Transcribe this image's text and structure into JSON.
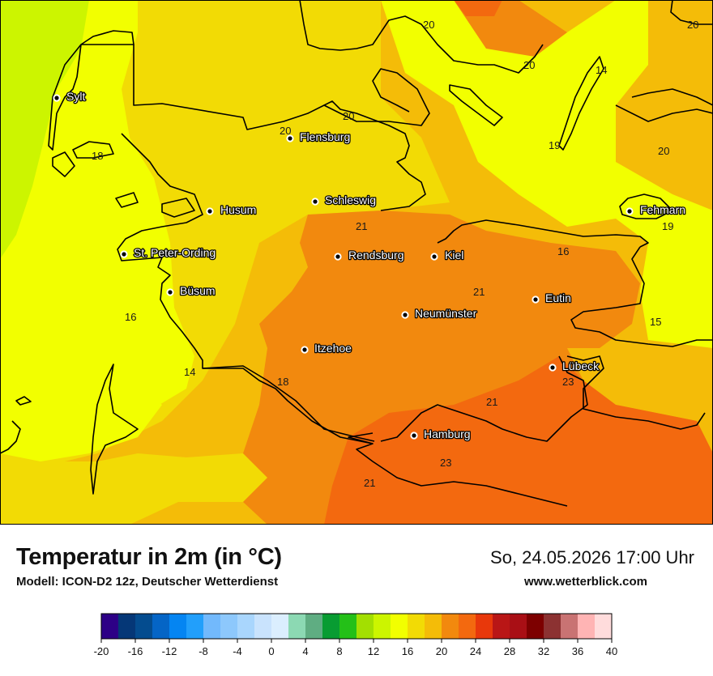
{
  "map": {
    "cities": [
      {
        "name": "Sylt"
      },
      {
        "name": "Flensburg"
      },
      {
        "name": "Schleswig"
      },
      {
        "name": "Husum"
      },
      {
        "name": "St. Peter-Ording"
      },
      {
        "name": "Rendsburg"
      },
      {
        "name": "Kiel"
      },
      {
        "name": "Büsum"
      },
      {
        "name": "Neumünster"
      },
      {
        "name": "Eutin"
      },
      {
        "name": "Fehmarn"
      },
      {
        "name": "Itzehoe"
      },
      {
        "name": "Lübeck"
      },
      {
        "name": "Hamburg"
      }
    ],
    "isotherm_labels": [
      "20",
      "20",
      "20",
      "14",
      "20",
      "19",
      "20",
      "18",
      "20",
      "21",
      "16",
      "19",
      "21",
      "16",
      "15",
      "14",
      "18",
      "23",
      "21",
      "23",
      "21"
    ],
    "colors": {
      "t16": "#f2ff00",
      "t18": "#f2db05",
      "t20": "#f4bc08",
      "t22": "#f2890e",
      "t24": "#f3690f",
      "t12": "#ccf500",
      "coast": "#000000"
    }
  },
  "footer": {
    "title": "Temperatur in 2m (in °C)",
    "model": "Modell: ICON-D2 12z, Deutscher Wetterdienst",
    "datetime": "So, 24.05.2026 17:00 Uhr",
    "website": "www.wetterblick.com"
  },
  "legend": {
    "colors": [
      "#2d0086",
      "#053777",
      "#044c8f",
      "#0565c6",
      "#0585f2",
      "#229ffb",
      "#72b9fc",
      "#8dc8fc",
      "#a9d6fd",
      "#c9e3fd",
      "#dbeefe",
      "#8cd9b3",
      "#5fad82",
      "#089c32",
      "#24c018",
      "#a3df01",
      "#ccf500",
      "#f2ff00",
      "#f2db05",
      "#f4bc08",
      "#f2890e",
      "#f3690f",
      "#e8380b",
      "#b91616",
      "#a90f15",
      "#7d0000",
      "#8c3232",
      "#c97373",
      "#ffb4b4",
      "#ffdcdc"
    ],
    "ticks": [
      "-20",
      "-16",
      "-12",
      "-8",
      "-4",
      "0",
      "4",
      "8",
      "12",
      "16",
      "20",
      "24",
      "28",
      "32",
      "36",
      "40"
    ]
  }
}
